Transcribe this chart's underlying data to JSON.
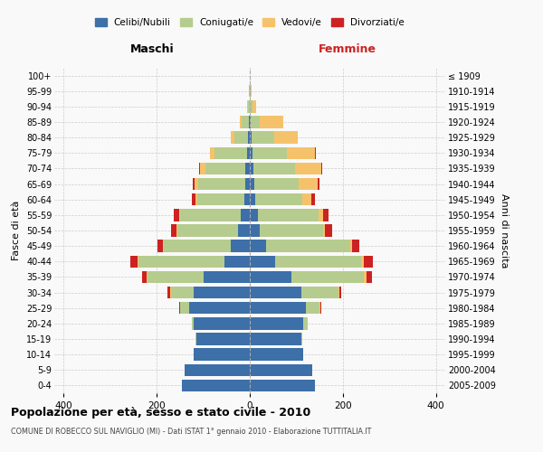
{
  "age_groups": [
    "0-4",
    "5-9",
    "10-14",
    "15-19",
    "20-24",
    "25-29",
    "30-34",
    "35-39",
    "40-44",
    "45-49",
    "50-54",
    "55-59",
    "60-64",
    "65-69",
    "70-74",
    "75-79",
    "80-84",
    "85-89",
    "90-94",
    "95-99",
    "100+"
  ],
  "birth_years": [
    "2005-2009",
    "2000-2004",
    "1995-1999",
    "1990-1994",
    "1985-1989",
    "1980-1984",
    "1975-1979",
    "1970-1974",
    "1965-1969",
    "1960-1964",
    "1955-1959",
    "1950-1954",
    "1945-1949",
    "1940-1944",
    "1935-1939",
    "1930-1934",
    "1925-1929",
    "1920-1924",
    "1915-1919",
    "1910-1914",
    "≤ 1909"
  ],
  "males": {
    "celibi": [
      145,
      140,
      120,
      115,
      120,
      130,
      120,
      100,
      55,
      40,
      25,
      20,
      12,
      10,
      10,
      6,
      3,
      2,
      0,
      0,
      0
    ],
    "coniugati": [
      0,
      0,
      0,
      2,
      5,
      20,
      50,
      120,
      185,
      145,
      130,
      130,
      100,
      100,
      85,
      70,
      30,
      15,
      3,
      1,
      0
    ],
    "vedovi": [
      0,
      0,
      0,
      0,
      0,
      0,
      1,
      2,
      2,
      2,
      2,
      2,
      5,
      8,
      12,
      10,
      8,
      5,
      2,
      0,
      0
    ],
    "divorziati": [
      0,
      0,
      0,
      0,
      0,
      2,
      5,
      10,
      15,
      12,
      12,
      12,
      8,
      5,
      2,
      0,
      0,
      0,
      0,
      0,
      0
    ]
  },
  "females": {
    "nubili": [
      140,
      135,
      115,
      110,
      115,
      120,
      110,
      90,
      55,
      35,
      22,
      18,
      12,
      10,
      8,
      5,
      3,
      2,
      0,
      0,
      0
    ],
    "coniugate": [
      0,
      0,
      0,
      3,
      10,
      30,
      80,
      155,
      185,
      180,
      135,
      130,
      100,
      95,
      90,
      75,
      50,
      20,
      5,
      1,
      0
    ],
    "vedove": [
      0,
      0,
      0,
      0,
      0,
      1,
      2,
      5,
      5,
      5,
      5,
      10,
      20,
      40,
      55,
      60,
      50,
      50,
      8,
      2,
      0
    ],
    "divorziate": [
      0,
      0,
      0,
      0,
      0,
      2,
      5,
      12,
      20,
      15,
      15,
      12,
      8,
      5,
      2,
      2,
      0,
      0,
      0,
      0,
      0
    ]
  },
  "colors": {
    "celibi_nubili": "#3d6fa8",
    "coniugati": "#b5cc8e",
    "vedovi": "#f5c26b",
    "divorziati": "#cc2222"
  },
  "xlim": 420,
  "title": "Popolazione per età, sesso e stato civile - 2010",
  "subtitle": "COMUNE DI ROBECCO SUL NAVIGLIO (MI) - Dati ISTAT 1° gennaio 2010 - Elaborazione TUTTITALIA.IT",
  "ylabel_left": "Fasce di età",
  "ylabel_right": "Anni di nascita",
  "xlabel_left": "Maschi",
  "xlabel_right": "Femmine",
  "legend_labels": [
    "Celibi/Nubili",
    "Coniugati/e",
    "Vedovi/e",
    "Divorziati/e"
  ],
  "bg_color": "#f9f9f9",
  "grid_color": "#cccccc"
}
